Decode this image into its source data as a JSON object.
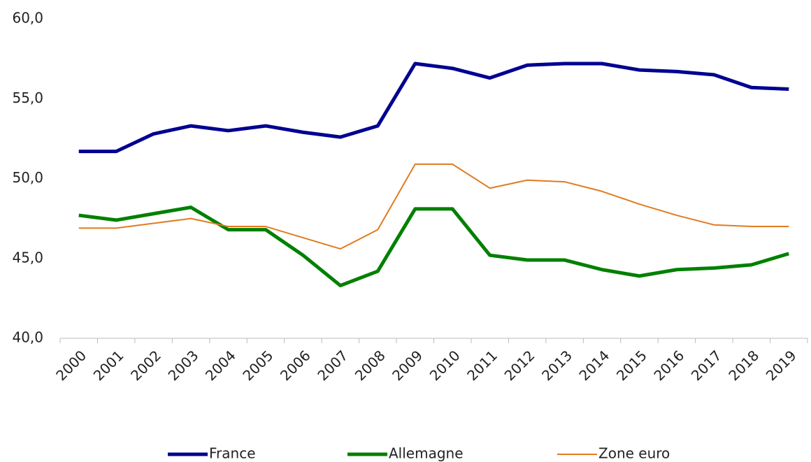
{
  "chart_data": {
    "type": "line",
    "categories": [
      "2000",
      "2001",
      "2002",
      "2003",
      "2004",
      "2005",
      "2006",
      "2007",
      "2008",
      "2009",
      "2010",
      "2011",
      "2012",
      "2013",
      "2014",
      "2015",
      "2016",
      "2017",
      "2018",
      "2019"
    ],
    "series": [
      {
        "name": "France",
        "color": "#000091",
        "width": 5,
        "values": [
          51.7,
          51.7,
          52.8,
          53.3,
          53.0,
          53.3,
          52.9,
          52.6,
          53.3,
          57.2,
          56.9,
          56.3,
          57.1,
          57.2,
          57.2,
          56.8,
          56.7,
          56.5,
          55.7,
          55.6
        ]
      },
      {
        "name": "Allemagne",
        "color": "#008000",
        "width": 5,
        "values": [
          47.7,
          47.4,
          47.8,
          48.2,
          46.8,
          46.8,
          45.2,
          43.3,
          44.2,
          48.1,
          48.1,
          45.2,
          44.9,
          44.9,
          44.3,
          43.9,
          44.3,
          44.4,
          44.6,
          45.3
        ]
      },
      {
        "name": "Zone euro",
        "color": "#e07b20",
        "width": 2,
        "values": [
          46.9,
          46.9,
          47.2,
          47.5,
          47.0,
          47.0,
          46.3,
          45.6,
          46.8,
          50.9,
          50.9,
          49.4,
          49.9,
          49.8,
          49.2,
          48.4,
          47.7,
          47.1,
          47.0,
          47.0
        ]
      }
    ],
    "ylim": [
      40,
      60
    ],
    "yticks": [
      {
        "value": 40,
        "label": "40,0"
      },
      {
        "value": 45,
        "label": "45,0"
      },
      {
        "value": 50,
        "label": "50,0"
      },
      {
        "value": 55,
        "label": "55,0"
      },
      {
        "value": 60,
        "label": "60,0"
      }
    ],
    "grid": false,
    "legend": "bottom"
  }
}
